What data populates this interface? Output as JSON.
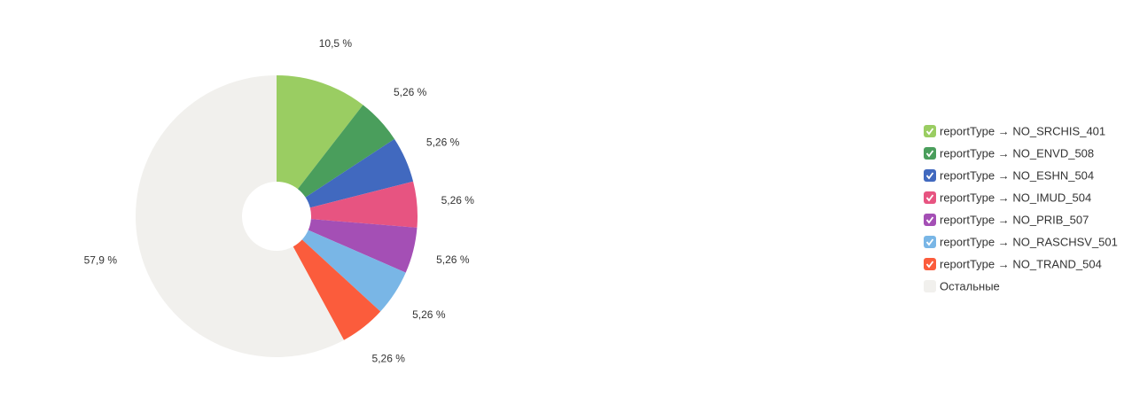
{
  "chart_data": {
    "type": "pie",
    "categories": [
      "reportType → NO_SRCHIS_401",
      "reportType → NO_ENVD_508",
      "reportType → NO_ESHN_504",
      "reportType → NO_IMUD_504",
      "reportType → NO_PRIB_507",
      "reportType → NO_RASCHSV_501",
      "reportType → NO_TRAND_504",
      "Остальные"
    ],
    "values": [
      10.5,
      5.26,
      5.26,
      5.26,
      5.26,
      5.26,
      5.26,
      57.9
    ],
    "value_labels": [
      "10,5 %",
      "5,26 %",
      "5,26 %",
      "5,26 %",
      "5,26 %",
      "5,26 %",
      "5,26 %",
      "57,9 %"
    ],
    "colors": [
      "#9acd62",
      "#4a9e5c",
      "#4169bf",
      "#e75481",
      "#a44fb5",
      "#79b6e6",
      "#fb5c3c",
      "#f1f0ed"
    ],
    "legend": "right"
  }
}
